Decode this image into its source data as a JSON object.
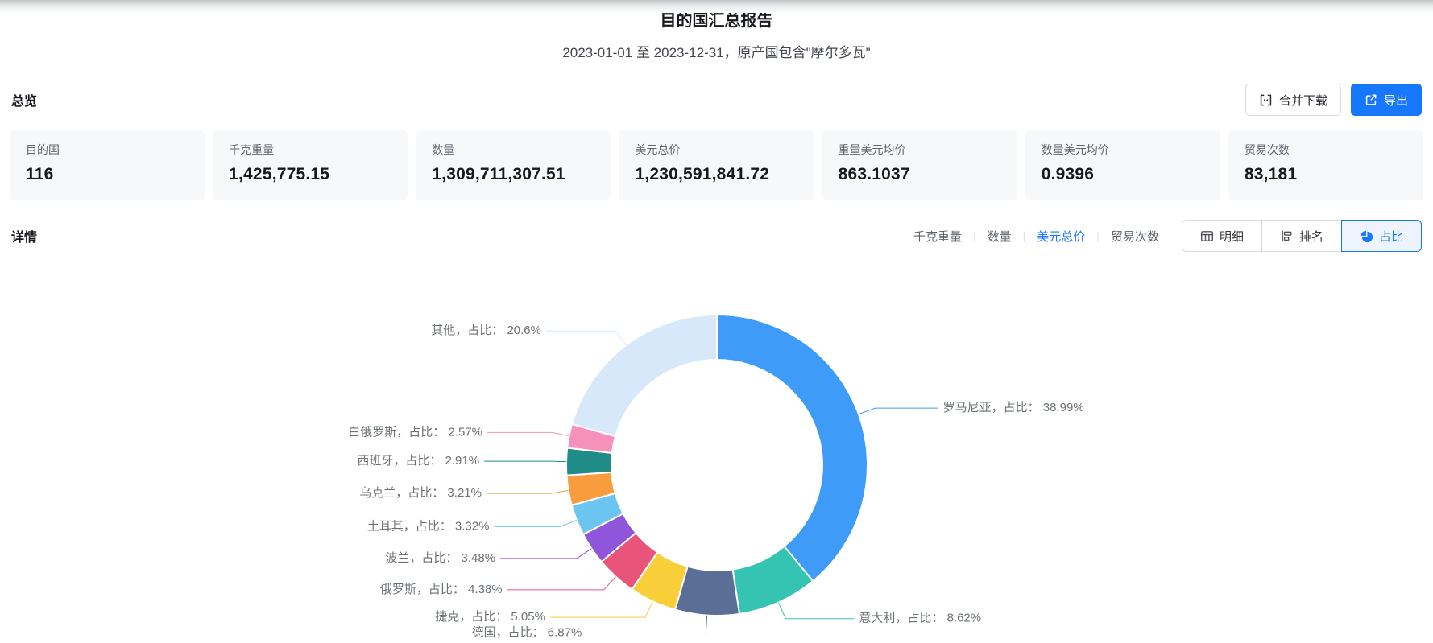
{
  "header": {
    "title": "目的国汇总报告",
    "subtitle": "2023-01-01 至 2023-12-31，原产国包含\"摩尔多瓦\""
  },
  "overview": {
    "section_title": "总览",
    "merge_download_label": "合并下载",
    "export_label": "导出",
    "cards": [
      {
        "label": "目的国",
        "value": "116"
      },
      {
        "label": "千克重量",
        "value": "1,425,775.15"
      },
      {
        "label": "数量",
        "value": "1,309,711,307.51"
      },
      {
        "label": "美元总价",
        "value": "1,230,591,841.72"
      },
      {
        "label": "重量美元均价",
        "value": "863.1037"
      },
      {
        "label": "数量美元均价",
        "value": "0.9396"
      },
      {
        "label": "贸易次数",
        "value": "83,181"
      }
    ]
  },
  "details": {
    "section_title": "详情",
    "metric_tabs": [
      {
        "label": "千克重量",
        "active": false
      },
      {
        "label": "数量",
        "active": false
      },
      {
        "label": "美元总价",
        "active": true
      },
      {
        "label": "贸易次数",
        "active": false
      }
    ],
    "view_buttons": [
      {
        "label": "明细",
        "icon": "table-icon",
        "active": false
      },
      {
        "label": "排名",
        "icon": "ranking-icon",
        "active": false
      },
      {
        "label": "占比",
        "icon": "pie-icon",
        "active": true
      }
    ]
  },
  "chart_data": {
    "type": "pie",
    "donut": true,
    "title": "",
    "label_template": "{name}，占比： {value}%",
    "legend_position": "none",
    "slices": [
      {
        "name": "罗马尼亚",
        "value": 38.99,
        "color": "#3E9BF7"
      },
      {
        "name": "意大利",
        "value": 8.62,
        "color": "#35C3B2"
      },
      {
        "name": "德国",
        "value": 6.87,
        "color": "#5B6E96"
      },
      {
        "name": "捷克",
        "value": 5.05,
        "color": "#F8CE39"
      },
      {
        "name": "俄罗斯",
        "value": 4.38,
        "color": "#E9547A"
      },
      {
        "name": "波兰",
        "value": 3.48,
        "color": "#8F55DB"
      },
      {
        "name": "土耳其",
        "value": 3.32,
        "color": "#6CC5F0"
      },
      {
        "name": "乌克兰",
        "value": 3.21,
        "color": "#F89C3D"
      },
      {
        "name": "西班牙",
        "value": 2.91,
        "color": "#1F8C88"
      },
      {
        "name": "白俄罗斯",
        "value": 2.57,
        "color": "#F691BC"
      },
      {
        "name": "其他",
        "value": 20.6,
        "color": "#D6E8FA"
      }
    ],
    "unit": "%"
  },
  "colors": {
    "primary": "#1677FF",
    "card_bg": "#F7F8FA",
    "label_text": "#6B7075"
  }
}
